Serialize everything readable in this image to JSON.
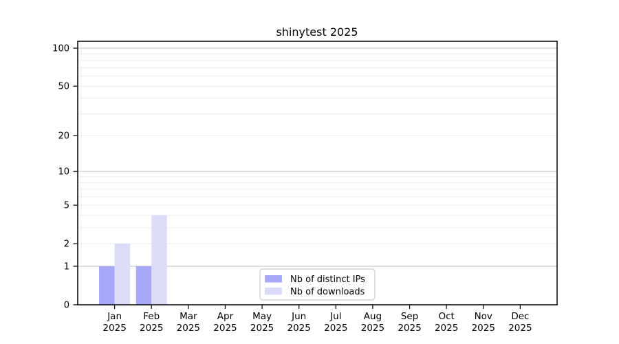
{
  "chart_data": {
    "type": "bar",
    "title": "shinytest 2025",
    "xlabel": "",
    "ylabel": "",
    "yscale": "log1p",
    "ylim": [
      0,
      113
    ],
    "yticks": [
      0,
      1,
      2,
      5,
      10,
      20,
      50,
      100
    ],
    "grid": {
      "on": true,
      "minor": [
        2,
        3,
        4,
        5,
        6,
        7,
        8,
        9,
        20,
        30,
        40,
        50,
        60,
        70,
        80,
        90
      ],
      "major": [
        1,
        10,
        100
      ]
    },
    "categories": [
      {
        "line1": "Jan",
        "line2": "2025"
      },
      {
        "line1": "Feb",
        "line2": "2025"
      },
      {
        "line1": "Mar",
        "line2": "2025"
      },
      {
        "line1": "Apr",
        "line2": "2025"
      },
      {
        "line1": "May",
        "line2": "2025"
      },
      {
        "line1": "Jun",
        "line2": "2025"
      },
      {
        "line1": "Jul",
        "line2": "2025"
      },
      {
        "line1": "Aug",
        "line2": "2025"
      },
      {
        "line1": "Sep",
        "line2": "2025"
      },
      {
        "line1": "Oct",
        "line2": "2025"
      },
      {
        "line1": "Nov",
        "line2": "2025"
      },
      {
        "line1": "Dec",
        "line2": "2025"
      }
    ],
    "series": [
      {
        "name": "Nb of distinct IPs",
        "color": "#a8a8f8",
        "values": [
          1,
          1,
          0,
          0,
          0,
          0,
          0,
          0,
          0,
          0,
          0,
          0
        ]
      },
      {
        "name": "Nb of downloads",
        "color": "#dcdcf8",
        "values": [
          2,
          4,
          0,
          0,
          0,
          0,
          0,
          0,
          0,
          0,
          0,
          0
        ]
      }
    ],
    "legend": {
      "position": "inside-bottom-center",
      "border_color": "#cccccc"
    }
  },
  "colors": {
    "background": "#ffffff",
    "spine": "#000000",
    "grid_minor": "#ececec",
    "grid_major": "#cccccc",
    "text": "#000000"
  }
}
